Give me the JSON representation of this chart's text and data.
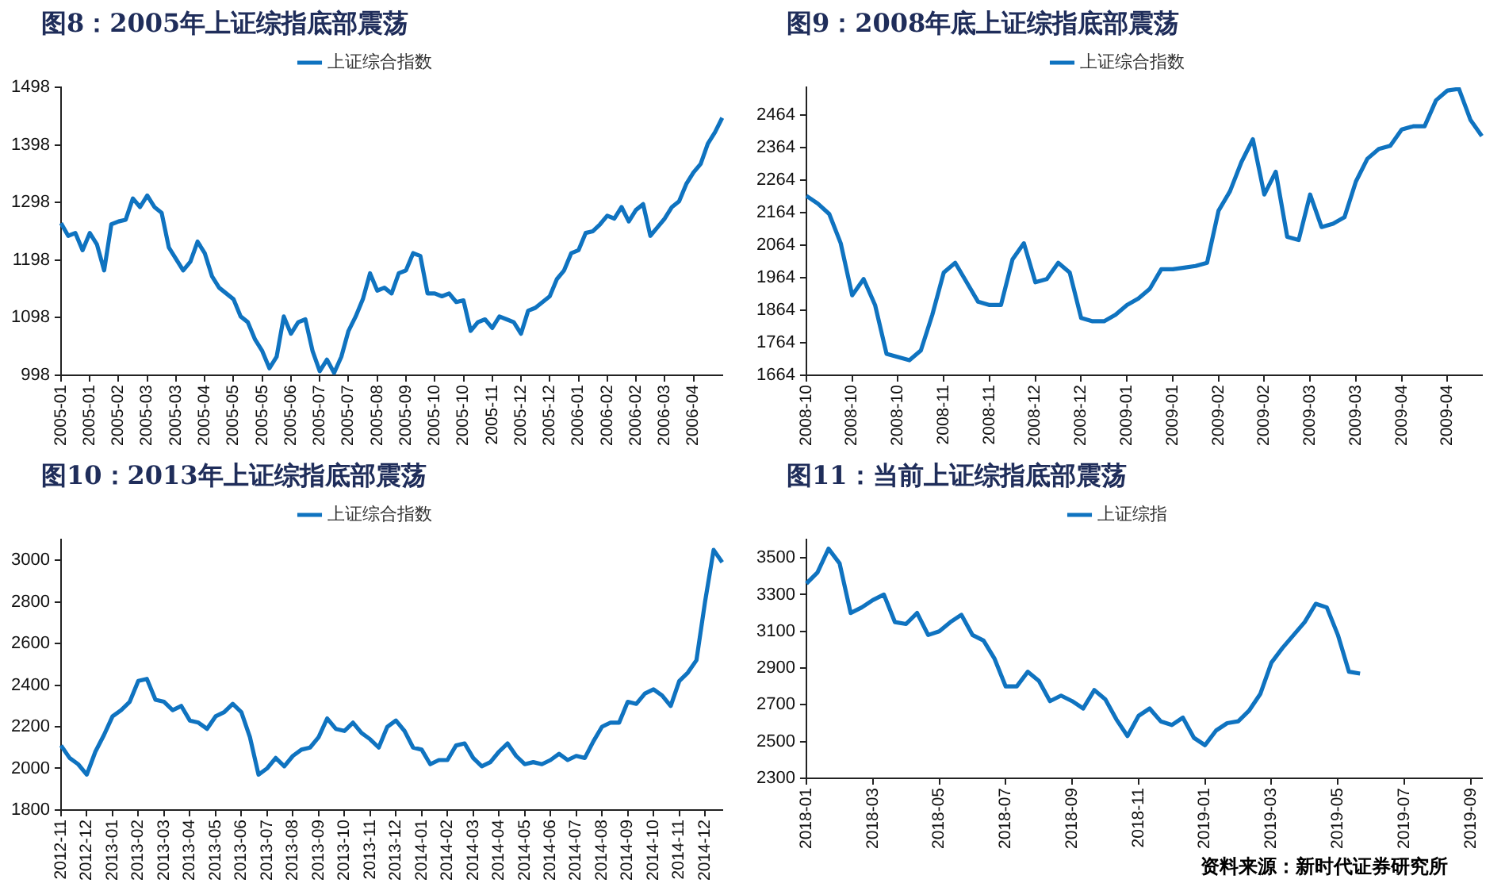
{
  "chart_data": [
    {
      "type": "line",
      "title": "图8：2005年上证综指底部震荡",
      "legend": "top",
      "grid": false,
      "marker": "none",
      "ylim": [
        998,
        1498
      ],
      "yticks": [
        998,
        1098,
        1198,
        1298,
        1398,
        1498
      ],
      "categories": [
        "2005-01",
        null,
        null,
        null,
        "2005-01",
        null,
        null,
        null,
        "2005-02",
        null,
        null,
        null,
        "2005-03",
        null,
        null,
        null,
        "2005-03",
        null,
        null,
        null,
        "2005-04",
        null,
        null,
        null,
        "2005-05",
        null,
        null,
        null,
        "2005-05",
        null,
        null,
        null,
        "2005-06",
        null,
        null,
        null,
        "2005-07",
        null,
        null,
        null,
        "2005-07",
        null,
        null,
        null,
        "2005-08",
        null,
        null,
        null,
        "2005-09",
        null,
        null,
        null,
        "2005-10",
        null,
        null,
        null,
        "2005-10",
        null,
        null,
        null,
        "2005-11",
        null,
        null,
        null,
        "2005-12",
        null,
        null,
        null,
        "2005-12",
        null,
        null,
        null,
        "2006-01",
        null,
        null,
        null,
        "2006-02",
        null,
        null,
        null,
        "2006-02",
        null,
        null,
        null,
        "2006-03",
        null,
        null,
        null,
        "2006-04",
        null,
        null,
        null,
        null
      ],
      "series": [
        {
          "name": "上证综合指数",
          "color": "#0f73c0",
          "values": [
            1262,
            1240,
            1245,
            1215,
            1245,
            1225,
            1180,
            1260,
            1265,
            1268,
            1305,
            1290,
            1310,
            1290,
            1280,
            1220,
            1200,
            1180,
            1195,
            1230,
            1210,
            1170,
            1150,
            1140,
            1130,
            1100,
            1090,
            1060,
            1040,
            1010,
            1030,
            1100,
            1070,
            1090,
            1095,
            1040,
            1005,
            1025,
            1002,
            1030,
            1075,
            1100,
            1130,
            1175,
            1145,
            1150,
            1140,
            1175,
            1180,
            1210,
            1205,
            1140,
            1140,
            1135,
            1140,
            1125,
            1128,
            1075,
            1090,
            1095,
            1080,
            1100,
            1095,
            1090,
            1070,
            1110,
            1115,
            1125,
            1135,
            1165,
            1180,
            1210,
            1215,
            1245,
            1248,
            1260,
            1275,
            1270,
            1290,
            1265,
            1285,
            1295,
            1240,
            1255,
            1270,
            1290,
            1300,
            1330,
            1350,
            1365,
            1400,
            1420,
            1445
          ]
        }
      ]
    },
    {
      "type": "line",
      "title": "图9：2008年底上证综指底部震荡",
      "legend": "top",
      "grid": false,
      "marker": "none",
      "ylim": [
        1664,
        2550
      ],
      "yticks": [
        1664,
        1764,
        1864,
        1964,
        2064,
        2164,
        2264,
        2364,
        2464
      ],
      "categories": [
        "2008-10",
        null,
        null,
        null,
        "2008-10",
        null,
        null,
        null,
        "2008-10",
        null,
        null,
        null,
        "2008-11",
        null,
        null,
        null,
        "2008-11",
        null,
        null,
        null,
        "2008-12",
        null,
        null,
        null,
        "2008-12",
        null,
        null,
        null,
        "2009-01",
        null,
        null,
        null,
        "2009-01",
        null,
        null,
        null,
        "2009-02",
        null,
        null,
        null,
        "2009-02",
        null,
        null,
        null,
        "2009-03",
        null,
        null,
        null,
        "2009-03",
        null,
        null,
        null,
        "2009-04",
        null,
        null,
        null,
        "2009-04",
        null,
        null,
        null
      ],
      "series": [
        {
          "name": "上证综合指数",
          "color": "#0f73c0",
          "values": [
            2216,
            2192,
            2160,
            2070,
            1910,
            1960,
            1880,
            1730,
            1720,
            1710,
            1740,
            1850,
            1980,
            2010,
            1950,
            1890,
            1880,
            1880,
            2020,
            2070,
            1950,
            1960,
            2010,
            1980,
            1840,
            1830,
            1830,
            1850,
            1880,
            1900,
            1930,
            1990,
            1990,
            1995,
            2000,
            2010,
            2170,
            2230,
            2320,
            2390,
            2220,
            2290,
            2090,
            2080,
            2220,
            2120,
            2130,
            2150,
            2260,
            2330,
            2360,
            2370,
            2420,
            2430,
            2430,
            2510,
            2540,
            2545,
            2450,
            2400
          ]
        }
      ]
    },
    {
      "type": "line",
      "title": "图10：2013年上证综指底部震荡",
      "legend": "top",
      "grid": false,
      "marker": "none",
      "ylim": [
        1800,
        3100
      ],
      "yticks": [
        1800,
        2000,
        2200,
        2400,
        2600,
        2800,
        3000
      ],
      "categories": [
        "2012-11",
        null,
        null,
        "2012-12",
        null,
        null,
        "2013-01",
        null,
        null,
        "2013-02",
        null,
        null,
        "2013-03",
        null,
        null,
        "2013-04",
        null,
        null,
        "2013-05",
        null,
        null,
        "2013-06",
        null,
        null,
        "2013-07",
        null,
        null,
        "2013-08",
        null,
        null,
        "2013-09",
        null,
        null,
        "2013-10",
        null,
        null,
        "2013-11",
        null,
        null,
        "2013-12",
        null,
        null,
        "2014-01",
        null,
        null,
        "2014-02",
        null,
        null,
        "2014-03",
        null,
        null,
        "2014-04",
        null,
        null,
        "2014-05",
        null,
        null,
        "2014-06",
        null,
        null,
        "2014-07",
        null,
        null,
        "2014-08",
        null,
        null,
        "2014-09",
        null,
        null,
        "2014-10",
        null,
        null,
        "2014-11",
        null,
        null,
        "2014-12",
        null,
        null
      ],
      "series": [
        {
          "name": "上证综合指数",
          "color": "#0f73c0",
          "values": [
            2110,
            2050,
            2020,
            1970,
            2080,
            2160,
            2250,
            2280,
            2320,
            2420,
            2430,
            2330,
            2320,
            2280,
            2300,
            2230,
            2220,
            2190,
            2250,
            2270,
            2310,
            2270,
            2150,
            1970,
            2000,
            2050,
            2010,
            2060,
            2090,
            2100,
            2150,
            2240,
            2190,
            2180,
            2220,
            2170,
            2140,
            2100,
            2200,
            2230,
            2180,
            2100,
            2090,
            2020,
            2040,
            2040,
            2110,
            2120,
            2050,
            2010,
            2030,
            2080,
            2120,
            2060,
            2020,
            2030,
            2020,
            2040,
            2070,
            2040,
            2060,
            2050,
            2130,
            2200,
            2220,
            2220,
            2320,
            2310,
            2360,
            2380,
            2350,
            2300,
            2420,
            2460,
            2520,
            2800,
            3050,
            2990
          ]
        }
      ]
    },
    {
      "type": "line",
      "title": "图11：当前上证综指底部震荡",
      "legend": "top",
      "grid": false,
      "marker": "none",
      "ylim": [
        2300,
        3600
      ],
      "yticks": [
        2300,
        2500,
        2700,
        2900,
        3100,
        3300,
        3500
      ],
      "annotations": [
        "资料来源：新时代证券研究所"
      ],
      "categories": [
        "2018-01",
        null,
        null,
        null,
        null,
        null,
        "2018-03",
        null,
        null,
        null,
        null,
        null,
        "2018-05",
        null,
        null,
        null,
        null,
        null,
        "2018-07",
        null,
        null,
        null,
        null,
        null,
        "2018-09",
        null,
        null,
        null,
        null,
        null,
        "2018-11",
        null,
        null,
        null,
        null,
        null,
        "2019-01",
        null,
        null,
        null,
        null,
        null,
        "2019-03",
        null,
        null,
        null,
        null,
        null,
        "2019-05",
        null,
        null,
        null,
        null,
        null,
        "2019-07",
        null,
        null,
        null,
        null,
        null,
        "2019-09",
        null
      ],
      "series": [
        {
          "name": "上证综指",
          "color": "#0f73c0",
          "values": [
            3360,
            3420,
            3550,
            3470,
            3200,
            3230,
            3270,
            3300,
            3150,
            3140,
            3200,
            3080,
            3100,
            3150,
            3190,
            3080,
            3050,
            2950,
            2800,
            2800,
            2880,
            2830,
            2720,
            2750,
            2720,
            2680,
            2780,
            2730,
            2620,
            2530,
            2640,
            2680,
            2610,
            2590,
            2630,
            2520,
            2480,
            2560,
            2600,
            2610,
            2670,
            2760,
            2930,
            3010,
            3080,
            3150,
            3250,
            3230,
            3080,
            2880,
            2870,
            null,
            null,
            null,
            null,
            null,
            null,
            null,
            null,
            null,
            null,
            null
          ]
        }
      ]
    }
  ]
}
